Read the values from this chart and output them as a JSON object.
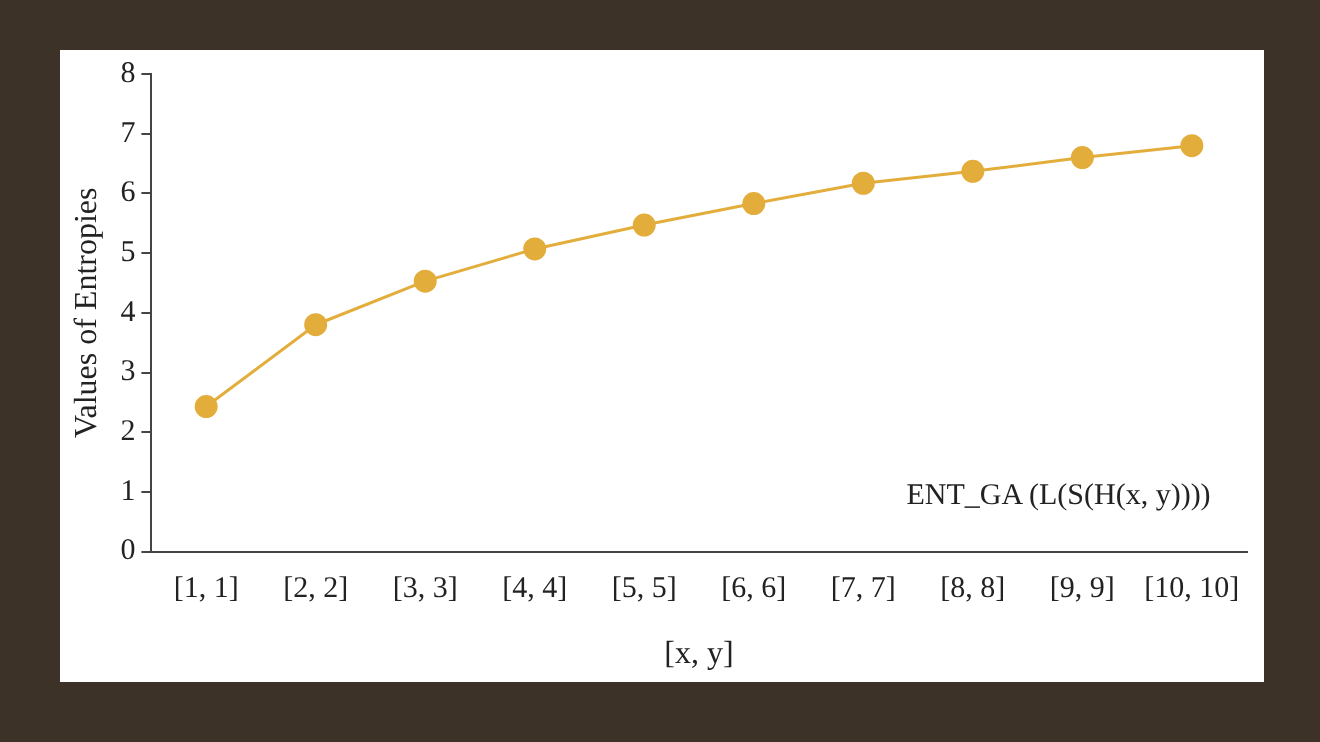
{
  "chart_data": {
    "type": "line",
    "xlabel": "[x, y]",
    "ylabel": "Values of Entropies",
    "categories": [
      "[1, 1]",
      "[2, 2]",
      "[3, 3]",
      "[4, 4]",
      "[5, 5]",
      "[6, 6]",
      "[7, 7]",
      "[8, 8]",
      "[9, 9]",
      "[10, 10]"
    ],
    "series": [
      {
        "color": "#e3ad3b",
        "values": [
          2.43,
          3.8,
          4.53,
          5.07,
          5.47,
          5.83,
          6.17,
          6.37,
          6.6,
          6.8
        ]
      }
    ],
    "ylim": [
      0,
      8
    ],
    "yticks": [
      0,
      1,
      2,
      3,
      4,
      5,
      6,
      7,
      8
    ],
    "marker": "circle",
    "line_style": "solid",
    "annotations": [
      "ENT_GA (L(S(H(x, y))))"
    ]
  }
}
